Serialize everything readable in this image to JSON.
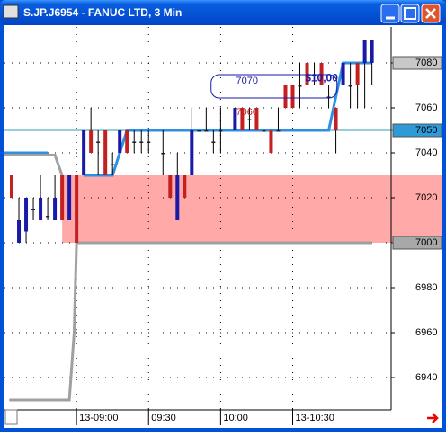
{
  "chart_data": {
    "type": "candlestick",
    "title": "S.JP.J6954 - FANUC LTD, 3 Min",
    "x": [
      -27,
      -24,
      -21,
      -18,
      -15,
      -12,
      -9,
      -6,
      -3,
      0,
      3,
      6,
      9,
      12,
      15,
      18,
      21,
      24,
      27,
      30,
      36,
      39,
      42,
      45,
      48,
      51,
      54,
      57,
      60,
      66,
      69,
      72,
      75,
      78,
      81,
      84,
      87,
      90,
      93,
      96,
      99,
      102,
      105,
      108,
      111,
      114,
      117,
      120,
      123
    ],
    "open": [
      7030,
      7000,
      7005,
      7015,
      7010,
      7012,
      7010,
      7030,
      7010,
      7030,
      7030,
      7050,
      7045,
      7050,
      7035,
      7040,
      7050,
      7045,
      7045,
      7045,
      7040,
      7030,
      7010,
      7030,
      7030,
      7050,
      7050,
      7045,
      7050,
      7050,
      7060,
      7055,
      7060,
      7050,
      7050,
      7050,
      7070,
      7070,
      7070,
      7080,
      7075,
      7080,
      7065,
      7060,
      7070,
      7070,
      7080,
      7080,
      7080
    ],
    "high": [
      7030,
      7020,
      7020,
      7020,
      7030,
      7020,
      7030,
      7030,
      7030,
      7030,
      7050,
      7060,
      7050,
      7050,
      7040,
      7050,
      7050,
      7050,
      7050,
      7050,
      7050,
      7030,
      7040,
      7030,
      7060,
      7050,
      7060,
      7050,
      7060,
      7060,
      7060,
      7060,
      7060,
      7050,
      7050,
      7060,
      7070,
      7070,
      7080,
      7080,
      7080,
      7080,
      7070,
      7060,
      7080,
      7080,
      7080,
      7090,
      7090
    ],
    "low": [
      7020,
      7000,
      7000,
      7010,
      7010,
      7010,
      7010,
      7010,
      7010,
      7000,
      7030,
      7040,
      7030,
      7030,
      7030,
      7040,
      7040,
      7040,
      7040,
      7040,
      7030,
      7020,
      7010,
      7020,
      7030,
      7050,
      7050,
      7040,
      7040,
      7050,
      7050,
      7050,
      7050,
      7050,
      7040,
      7050,
      7060,
      7060,
      7060,
      7070,
      7070,
      7070,
      7060,
      7040,
      7070,
      7060,
      7060,
      7060,
      7070
    ],
    "close": [
      7020,
      7010,
      7020,
      7015,
      7020,
      7012,
      7020,
      7010,
      7030,
      7000,
      7050,
      7040,
      7045,
      7030,
      7035,
      7050,
      7040,
      7045,
      7045,
      7045,
      7040,
      7020,
      7030,
      7020,
      7050,
      7050,
      7050,
      7045,
      7050,
      7060,
      7050,
      7055,
      7050,
      7050,
      7040,
      7050,
      7060,
      7060,
      7070,
      7070,
      7075,
      7070,
      7065,
      7050,
      7080,
      7070,
      7070,
      7090,
      7090
    ],
    "up_color": "#1a1aa8",
    "down_color": "#c42020",
    "flat_color": "#202020",
    "lines": [
      {
        "color": "#2f8fe0",
        "x": [
          -30,
          -12,
          null,
          3,
          15,
          21,
          105,
          111,
          123
        ],
        "values": [
          7040,
          7040,
          null,
          7030,
          7030,
          7050,
          7050,
          7080,
          7080
        ]
      },
      {
        "color": "#a0a0a0",
        "x": [
          -30,
          -9,
          -6,
          null,
          -28,
          -3,
          -1,
          0,
          123
        ],
        "values": [
          7039,
          7039,
          7030,
          null,
          6930,
          6930,
          6960,
          7000,
          7000
        ]
      }
    ],
    "level": {
      "value": 7050,
      "color": "#2aa0b8"
    },
    "band": {
      "from": 7000,
      "to": 7030,
      "start": -6,
      "color": "#ff9a9a"
    },
    "markers": [
      {
        "value": 7080,
        "color": "#c8c8c8"
      },
      {
        "value": 7050,
        "color": "#2f9ad8"
      },
      {
        "value": 7000,
        "color": "#a8a8a8"
      }
    ],
    "annotations": [
      {
        "text": "7070",
        "x": 71,
        "y": 7072,
        "color": "#1a1aa8"
      },
      {
        "text": "7060",
        "x": 71,
        "y": 7058,
        "color": "#c42020"
      },
      {
        "text": "$10,00",
        "x": 102,
        "y": 7073,
        "color": "#1a1aa8"
      }
    ],
    "xlim": [
      -30,
      131
    ],
    "ylim": [
      6926,
      7096
    ],
    "xticks": [
      {
        "value": 0,
        "label": "13-09:00"
      },
      {
        "value": 30,
        "label": "09:30"
      },
      {
        "value": 60,
        "label": "10:00"
      },
      {
        "value": 90,
        "label": "13-10:30"
      }
    ],
    "yticks": [
      6940,
      6960,
      6980,
      7000,
      7020,
      7040,
      7060,
      7080
    ],
    "grid": true
  }
}
